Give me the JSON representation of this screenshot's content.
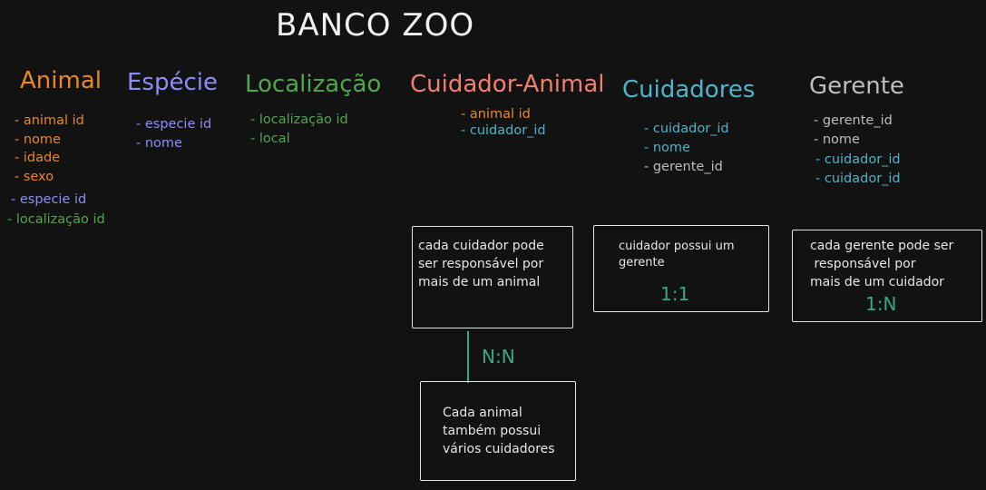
{
  "title": "BANCO ZOO",
  "colors": {
    "background": "#121212",
    "animal": "#e8862a",
    "especie": "#8e8cf5",
    "localizacao": "#4fa64f",
    "cuidador_animal": "#f07f71",
    "cuidadores": "#4fb3c9",
    "gerente": "#bdbdbd",
    "ratio": "#38a889"
  },
  "entities": {
    "animal": {
      "title": "Animal",
      "attrs": [
        "- animal id",
        "- nome",
        "- idade",
        "- sexo"
      ],
      "fk_attrs": [
        "- especie id",
        "- localização id"
      ]
    },
    "especie": {
      "title": "Espécie",
      "attrs": [
        "- especie id",
        "- nome"
      ]
    },
    "localizacao": {
      "title": "Localização",
      "attrs": [
        "- localização id",
        "- local"
      ]
    },
    "cuidador_animal": {
      "title": "Cuidador-Animal",
      "attrs": [
        "- animal id",
        "- cuidador_id"
      ]
    },
    "cuidadores": {
      "title": "Cuidadores",
      "attrs": [
        "- cuidador_id",
        "- nome",
        "- gerente_id"
      ]
    },
    "gerente": {
      "title": "Gerente",
      "attrs": [
        "- gerente_id",
        "- nome"
      ],
      "fk_attrs": [
        "- cuidador_id",
        "- cuidador_id"
      ]
    }
  },
  "notes": {
    "cuidador_animal": {
      "text": "cada cuidador pode\nser responsável por\nmais de um animal"
    },
    "cuidador_gerente": {
      "text": "cuidador possui um\ngerente",
      "ratio": "1:1"
    },
    "gerente_cuidador": {
      "text": "cada gerente pode ser\n responsável por\nmais de um cuidador",
      "ratio": "1:N"
    },
    "animal_cuidadores": {
      "text": "Cada animal\ntambém possui\nvários cuidadores"
    },
    "connector_ratio": "N:N"
  }
}
